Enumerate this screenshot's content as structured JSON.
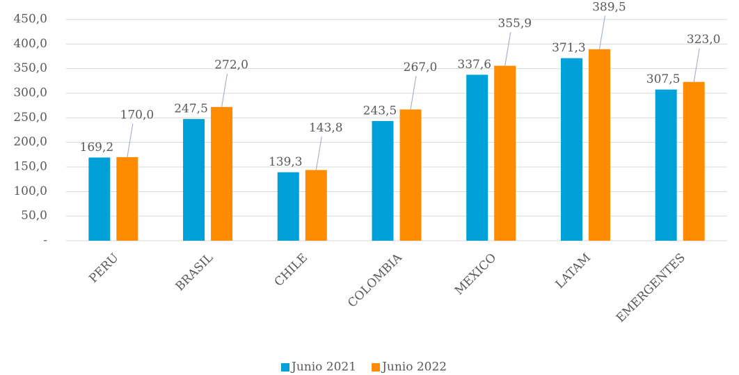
{
  "chart_data": {
    "type": "bar",
    "categories": [
      "PERU",
      "BRASIL",
      "CHILE",
      "COLOMBIA",
      "MEXICO",
      "LATAM",
      "EMERGENTES"
    ],
    "series": [
      {
        "name": "Junio 2021",
        "color": "#00a0d8",
        "values": [
          169.2,
          247.5,
          139.3,
          243.5,
          337.6,
          371.3,
          307.5
        ],
        "value_labels": [
          "169,2",
          "247,5",
          "139,3",
          "243,5",
          "337,6",
          "371,3",
          "307,5"
        ]
      },
      {
        "name": "Junio 2022",
        "color": "#ff8c00",
        "values": [
          170.0,
          272.0,
          143.8,
          267.0,
          355.9,
          389.5,
          323.0
        ],
        "value_labels": [
          "170,0",
          "272,0",
          "143,8",
          "267,0",
          "355,9",
          "389,5",
          "323,0"
        ]
      }
    ],
    "ylim": [
      0,
      450
    ],
    "yticks": [
      {
        "value": 0,
        "label": "-"
      },
      {
        "value": 50,
        "label": "50,0"
      },
      {
        "value": 100,
        "label": "100,0"
      },
      {
        "value": 150,
        "label": "150,0"
      },
      {
        "value": 200,
        "label": "200,0"
      },
      {
        "value": 250,
        "label": "250,0"
      },
      {
        "value": 300,
        "label": "300,0"
      },
      {
        "value": 350,
        "label": "350,0"
      },
      {
        "value": 400,
        "label": "400,0"
      },
      {
        "value": 450,
        "label": "450,0"
      }
    ],
    "grid": true,
    "legend": "bottom"
  }
}
